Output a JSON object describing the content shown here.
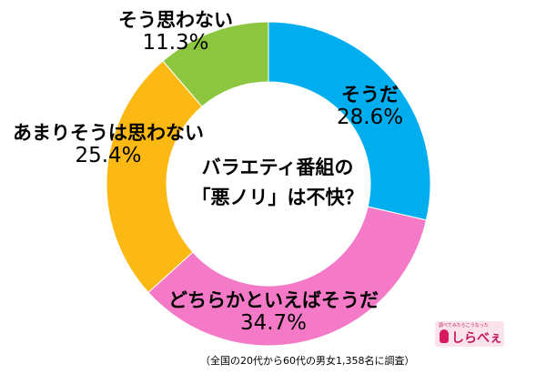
{
  "chart_data": {
    "type": "pie",
    "title_lines": [
      "バラエティ番組の",
      "「悪ノリ」は不快？"
    ],
    "slices": [
      {
        "label": "そうだ",
        "value": 28.6,
        "value_label": "28.6%",
        "color": "#00aeef"
      },
      {
        "label": "どちらかといえばそうだ",
        "value": 34.7,
        "value_label": "34.7%",
        "color": "#f47ac8"
      },
      {
        "label": "あまりそうは思わない",
        "value": 25.4,
        "value_label": "25.4%",
        "color": "#fdb913"
      },
      {
        "label": "そう思わない",
        "value": 11.3,
        "value_label": "11.3%",
        "color": "#8cc63f"
      }
    ]
  },
  "footnote": "（全国の20代から60代の男女1,358名に調査）",
  "logo": {
    "tagline": "調べてみたらこうなった",
    "brand": "しらべぇ"
  }
}
